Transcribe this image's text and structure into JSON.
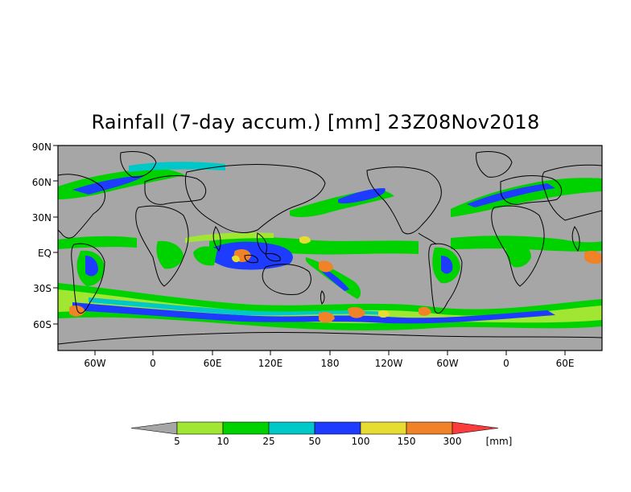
{
  "title": "Rainfall (7-day accum.) [mm] 23Z08Nov2018",
  "map": {
    "y_axis_labels": [
      "90N",
      "60N",
      "30N",
      "EQ",
      "30S",
      "60S"
    ],
    "x_axis_labels": [
      "60W",
      "0",
      "60E",
      "120E",
      "180",
      "120W",
      "60W",
      "0",
      "60E"
    ],
    "background_color": "#a6a6a6",
    "coastline_color": "#000000"
  },
  "legend": {
    "unit": "[mm]",
    "thresholds": [
      "5",
      "10",
      "25",
      "50",
      "100",
      "150",
      "300"
    ],
    "colors": [
      "#a6a6a6",
      "#a0e632",
      "#00d200",
      "#00c8c8",
      "#1e3cff",
      "#e6dc32",
      "#f08228",
      "#fa3c3c"
    ]
  }
}
